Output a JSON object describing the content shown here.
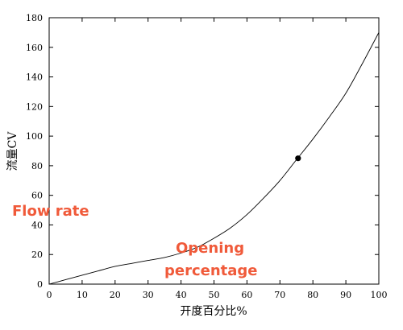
{
  "chart_data": {
    "type": "line",
    "xlabel": "开度百分比%",
    "ylabel": "流量CV",
    "xlim": [
      0,
      100
    ],
    "ylim": [
      0,
      180
    ],
    "x_ticks": [
      "0",
      "10",
      "20",
      "30",
      "40",
      "50",
      "60",
      "70",
      "80",
      "90",
      "100"
    ],
    "y_ticks": [
      "0",
      "20",
      "40",
      "60",
      "80",
      "100",
      "120",
      "140",
      "160",
      "180"
    ],
    "grid": false,
    "series": [
      {
        "x": [
          0,
          5,
          10,
          15,
          20,
          25,
          30,
          35,
          40,
          45,
          50,
          55,
          60,
          65,
          70,
          75,
          80,
          85,
          90,
          95,
          100
        ],
        "y": [
          0,
          3,
          6,
          9,
          12,
          14,
          16,
          18,
          21,
          25,
          31,
          38,
          47,
          58,
          70,
          84,
          98,
          113,
          129,
          149,
          170
        ]
      }
    ],
    "highlight_point": {
      "x": 75.5,
      "y": 85
    },
    "annotations": [
      {
        "text": "Flow rate",
        "color": "#f05a3a"
      },
      {
        "text": "Opening",
        "color": "#f05a3a"
      },
      {
        "text": "percentage",
        "color": "#f05a3a"
      }
    ]
  }
}
